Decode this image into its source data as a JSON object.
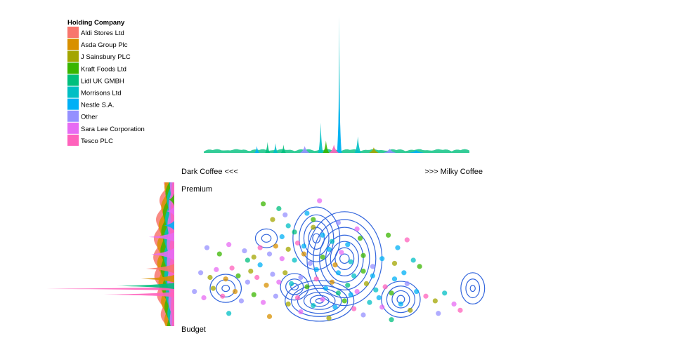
{
  "chart_data": {
    "type": "scatter",
    "legend": {
      "title": "Holding Company",
      "placement": "top-left",
      "entries": [
        {
          "name": "Aldi Stores Ltd",
          "color": "#F8766D"
        },
        {
          "name": "Asda Group Plc",
          "color": "#D89000"
        },
        {
          "name": "J Sainsbury PLC",
          "color": "#A3A500"
        },
        {
          "name": "Kraft Foods Ltd",
          "color": "#39B600"
        },
        {
          "name": "Lidl UK GMBH",
          "color": "#00BF7D"
        },
        {
          "name": "Morrisons Ltd",
          "color": "#00BFC4"
        },
        {
          "name": "Nestle S.A.",
          "color": "#00B0F6"
        },
        {
          "name": "Other",
          "color": "#9590FF"
        },
        {
          "name": "Sara Lee Corporation",
          "color": "#E76BF3"
        },
        {
          "name": "Tesco PLC",
          "color": "#FF62BC"
        }
      ]
    },
    "labels": {
      "x_left": "Dark Coffee <<<",
      "x_right": ">>> Milky Coffee",
      "y_top": "Premium",
      "y_bottom": "Budget"
    },
    "xlim": [
      0,
      1
    ],
    "ylim": [
      0,
      1
    ],
    "grid": false,
    "contour_color": "#3366DD",
    "contours": [
      {
        "center": [
          0.54,
          0.49
        ],
        "rx": [
          0.015,
          0.03,
          0.045,
          0.06,
          0.08,
          0.1,
          0.12
        ],
        "ry": [
          0.03,
          0.07,
          0.11,
          0.15,
          0.2,
          0.25,
          0.3
        ]
      },
      {
        "center": [
          0.45,
          0.62
        ],
        "rx": [
          0.012,
          0.025,
          0.04,
          0.055,
          0.075
        ],
        "ry": [
          0.03,
          0.07,
          0.11,
          0.15,
          0.2
        ]
      },
      {
        "center": [
          0.46,
          0.22
        ],
        "rx": [
          0.012,
          0.03,
          0.05,
          0.07,
          0.09,
          0.11
        ],
        "ry": [
          0.015,
          0.035,
          0.055,
          0.08,
          0.1,
          0.13
        ]
      },
      {
        "center": [
          0.72,
          0.23
        ],
        "rx": [
          0.012,
          0.028,
          0.045,
          0.062
        ],
        "ry": [
          0.025,
          0.055,
          0.085,
          0.115
        ]
      },
      {
        "center": [
          0.95,
          0.3
        ],
        "rx": [
          0.008,
          0.022,
          0.038
        ],
        "ry": [
          0.02,
          0.06,
          0.1
        ]
      },
      {
        "center": [
          0.16,
          0.3
        ],
        "rx": [
          0.012,
          0.03,
          0.05
        ],
        "ry": [
          0.02,
          0.055,
          0.09
        ]
      },
      {
        "center": [
          0.38,
          0.31
        ],
        "rx": [
          0.012,
          0.028,
          0.045
        ],
        "ry": [
          0.02,
          0.05,
          0.085
        ]
      },
      {
        "center": [
          0.29,
          0.62
        ],
        "rx": [
          0.015,
          0.035
        ],
        "ry": [
          0.025,
          0.06
        ]
      }
    ],
    "points": [
      {
        "x": 0.28,
        "y": 0.84,
        "c": 3
      },
      {
        "x": 0.33,
        "y": 0.81,
        "c": 4
      },
      {
        "x": 0.46,
        "y": 0.86,
        "c": 8
      },
      {
        "x": 0.31,
        "y": 0.74,
        "c": 2
      },
      {
        "x": 0.42,
        "y": 0.78,
        "c": 6
      },
      {
        "x": 0.36,
        "y": 0.7,
        "c": 5
      },
      {
        "x": 0.44,
        "y": 0.69,
        "c": 2
      },
      {
        "x": 0.52,
        "y": 0.72,
        "c": 7
      },
      {
        "x": 0.58,
        "y": 0.68,
        "c": 8
      },
      {
        "x": 0.68,
        "y": 0.64,
        "c": 3
      },
      {
        "x": 0.74,
        "y": 0.61,
        "c": 9
      },
      {
        "x": 0.71,
        "y": 0.56,
        "c": 6
      },
      {
        "x": 0.1,
        "y": 0.56,
        "c": 7
      },
      {
        "x": 0.14,
        "y": 0.52,
        "c": 3
      },
      {
        "x": 0.17,
        "y": 0.58,
        "c": 8
      },
      {
        "x": 0.22,
        "y": 0.54,
        "c": 7
      },
      {
        "x": 0.25,
        "y": 0.5,
        "c": 2
      },
      {
        "x": 0.27,
        "y": 0.56,
        "c": 9
      },
      {
        "x": 0.3,
        "y": 0.52,
        "c": 7
      },
      {
        "x": 0.32,
        "y": 0.57,
        "c": 1
      },
      {
        "x": 0.34,
        "y": 0.49,
        "c": 8
      },
      {
        "x": 0.36,
        "y": 0.55,
        "c": 2
      },
      {
        "x": 0.38,
        "y": 0.48,
        "c": 5
      },
      {
        "x": 0.39,
        "y": 0.59,
        "c": 9
      },
      {
        "x": 0.41,
        "y": 0.52,
        "c": 1
      },
      {
        "x": 0.43,
        "y": 0.46,
        "c": 7
      },
      {
        "x": 0.47,
        "y": 0.5,
        "c": 3
      },
      {
        "x": 0.49,
        "y": 0.55,
        "c": 6
      },
      {
        "x": 0.51,
        "y": 0.45,
        "c": 1
      },
      {
        "x": 0.53,
        "y": 0.53,
        "c": 8
      },
      {
        "x": 0.56,
        "y": 0.47,
        "c": 5
      },
      {
        "x": 0.6,
        "y": 0.51,
        "c": 3
      },
      {
        "x": 0.63,
        "y": 0.44,
        "c": 7
      },
      {
        "x": 0.66,
        "y": 0.49,
        "c": 6
      },
      {
        "x": 0.7,
        "y": 0.46,
        "c": 2
      },
      {
        "x": 0.76,
        "y": 0.48,
        "c": 5
      },
      {
        "x": 0.78,
        "y": 0.44,
        "c": 3
      },
      {
        "x": 0.08,
        "y": 0.4,
        "c": 7
      },
      {
        "x": 0.11,
        "y": 0.37,
        "c": 2
      },
      {
        "x": 0.13,
        "y": 0.42,
        "c": 8
      },
      {
        "x": 0.16,
        "y": 0.36,
        "c": 1
      },
      {
        "x": 0.18,
        "y": 0.43,
        "c": 9
      },
      {
        "x": 0.2,
        "y": 0.38,
        "c": 3
      },
      {
        "x": 0.23,
        "y": 0.34,
        "c": 7
      },
      {
        "x": 0.24,
        "y": 0.41,
        "c": 2
      },
      {
        "x": 0.26,
        "y": 0.37,
        "c": 9
      },
      {
        "x": 0.29,
        "y": 0.32,
        "c": 1
      },
      {
        "x": 0.31,
        "y": 0.39,
        "c": 7
      },
      {
        "x": 0.33,
        "y": 0.34,
        "c": 8
      },
      {
        "x": 0.35,
        "y": 0.4,
        "c": 2
      },
      {
        "x": 0.37,
        "y": 0.33,
        "c": 5
      },
      {
        "x": 0.4,
        "y": 0.37,
        "c": 7
      },
      {
        "x": 0.42,
        "y": 0.31,
        "c": 3
      },
      {
        "x": 0.45,
        "y": 0.36,
        "c": 9
      },
      {
        "x": 0.48,
        "y": 0.3,
        "c": 6
      },
      {
        "x": 0.5,
        "y": 0.34,
        "c": 1
      },
      {
        "x": 0.55,
        "y": 0.32,
        "c": 4
      },
      {
        "x": 0.58,
        "y": 0.28,
        "c": 8
      },
      {
        "x": 0.61,
        "y": 0.33,
        "c": 2
      },
      {
        "x": 0.64,
        "y": 0.29,
        "c": 5
      },
      {
        "x": 0.67,
        "y": 0.31,
        "c": 9
      },
      {
        "x": 0.69,
        "y": 0.27,
        "c": 3
      },
      {
        "x": 0.74,
        "y": 0.33,
        "c": 7
      },
      {
        "x": 0.77,
        "y": 0.28,
        "c": 6
      },
      {
        "x": 0.8,
        "y": 0.25,
        "c": 9
      },
      {
        "x": 0.83,
        "y": 0.22,
        "c": 2
      },
      {
        "x": 0.86,
        "y": 0.27,
        "c": 5
      },
      {
        "x": 0.89,
        "y": 0.2,
        "c": 8
      },
      {
        "x": 0.06,
        "y": 0.28,
        "c": 7
      },
      {
        "x": 0.09,
        "y": 0.24,
        "c": 8
      },
      {
        "x": 0.12,
        "y": 0.3,
        "c": 2
      },
      {
        "x": 0.15,
        "y": 0.25,
        "c": 9
      },
      {
        "x": 0.19,
        "y": 0.28,
        "c": 1
      },
      {
        "x": 0.21,
        "y": 0.22,
        "c": 7
      },
      {
        "x": 0.25,
        "y": 0.26,
        "c": 3
      },
      {
        "x": 0.28,
        "y": 0.21,
        "c": 8
      },
      {
        "x": 0.32,
        "y": 0.25,
        "c": 7
      },
      {
        "x": 0.36,
        "y": 0.2,
        "c": 2
      },
      {
        "x": 0.39,
        "y": 0.24,
        "c": 9
      },
      {
        "x": 0.44,
        "y": 0.19,
        "c": 5
      },
      {
        "x": 0.47,
        "y": 0.23,
        "c": 8
      },
      {
        "x": 0.51,
        "y": 0.18,
        "c": 6
      },
      {
        "x": 0.54,
        "y": 0.22,
        "c": 3
      },
      {
        "x": 0.57,
        "y": 0.17,
        "c": 9
      },
      {
        "x": 0.62,
        "y": 0.21,
        "c": 5
      },
      {
        "x": 0.66,
        "y": 0.18,
        "c": 8
      },
      {
        "x": 0.72,
        "y": 0.2,
        "c": 6
      },
      {
        "x": 0.75,
        "y": 0.16,
        "c": 2
      },
      {
        "x": 0.84,
        "y": 0.14,
        "c": 7
      },
      {
        "x": 0.91,
        "y": 0.16,
        "c": 9
      },
      {
        "x": 0.17,
        "y": 0.14,
        "c": 5
      },
      {
        "x": 0.3,
        "y": 0.12,
        "c": 1
      },
      {
        "x": 0.4,
        "y": 0.15,
        "c": 8
      },
      {
        "x": 0.49,
        "y": 0.11,
        "c": 2
      },
      {
        "x": 0.6,
        "y": 0.13,
        "c": 7
      },
      {
        "x": 0.69,
        "y": 0.1,
        "c": 4
      },
      {
        "x": 0.47,
        "y": 0.64,
        "c": 6
      },
      {
        "x": 0.5,
        "y": 0.6,
        "c": 5
      },
      {
        "x": 0.55,
        "y": 0.58,
        "c": 6
      },
      {
        "x": 0.45,
        "y": 0.42,
        "c": 6
      },
      {
        "x": 0.52,
        "y": 0.4,
        "c": 6
      },
      {
        "x": 0.57,
        "y": 0.38,
        "c": 5
      },
      {
        "x": 0.63,
        "y": 0.38,
        "c": 6
      },
      {
        "x": 0.7,
        "y": 0.36,
        "c": 6
      },
      {
        "x": 0.73,
        "y": 0.4,
        "c": 6
      },
      {
        "x": 0.41,
        "y": 0.57,
        "c": 6
      },
      {
        "x": 0.34,
        "y": 0.63,
        "c": 6
      },
      {
        "x": 0.27,
        "y": 0.45,
        "c": 6
      },
      {
        "x": 0.56,
        "y": 0.26,
        "c": 6
      },
      {
        "x": 0.65,
        "y": 0.24,
        "c": 6
      },
      {
        "x": 0.52,
        "y": 0.27,
        "c": 4
      },
      {
        "x": 0.59,
        "y": 0.62,
        "c": 3
      },
      {
        "x": 0.38,
        "y": 0.66,
        "c": 4
      },
      {
        "x": 0.44,
        "y": 0.74,
        "c": 3
      },
      {
        "x": 0.35,
        "y": 0.77,
        "c": 7
      },
      {
        "x": 0.23,
        "y": 0.48,
        "c": 4
      },
      {
        "x": 0.6,
        "y": 0.41,
        "c": 3
      }
    ],
    "top_marginal": {
      "peaks": [
        {
          "x": 0.51,
          "h": 1.0,
          "w": 0.0018,
          "c": 5
        },
        {
          "x": 0.51,
          "h": 0.55,
          "w": 0.003,
          "c": 6
        },
        {
          "x": 0.44,
          "h": 0.22,
          "w": 0.003,
          "c": 5
        },
        {
          "x": 0.58,
          "h": 0.12,
          "w": 0.004,
          "c": 5
        },
        {
          "x": 0.46,
          "h": 0.09,
          "w": 0.004,
          "c": 3
        },
        {
          "x": 0.24,
          "h": 0.08,
          "w": 0.003,
          "c": 4
        },
        {
          "x": 0.27,
          "h": 0.07,
          "w": 0.003,
          "c": 5
        },
        {
          "x": 0.3,
          "h": 0.06,
          "w": 0.003,
          "c": 4
        },
        {
          "x": 0.2,
          "h": 0.05,
          "w": 0.003,
          "c": 6
        },
        {
          "x": 0.38,
          "h": 0.05,
          "w": 0.006,
          "c": 7
        },
        {
          "x": 0.49,
          "h": 0.06,
          "w": 0.006,
          "c": 9
        },
        {
          "x": 0.64,
          "h": 0.04,
          "w": 0.006,
          "c": 2
        },
        {
          "x": 0.7,
          "h": 0.03,
          "w": 0.008,
          "c": 7
        },
        {
          "x": 0.8,
          "h": 0.02,
          "w": 0.01,
          "c": 6
        }
      ]
    },
    "left_marginal": {
      "peaks": [
        {
          "y": 0.26,
          "h": 1.0,
          "w": 0.006,
          "c": 9
        },
        {
          "y": 0.22,
          "h": 0.55,
          "w": 0.008,
          "c": 9
        },
        {
          "y": 0.28,
          "h": 0.45,
          "w": 0.01,
          "c": 4
        },
        {
          "y": 0.33,
          "h": 0.26,
          "w": 0.012,
          "c": 1
        },
        {
          "y": 0.4,
          "h": 0.22,
          "w": 0.015,
          "c": 0
        },
        {
          "y": 0.5,
          "h": 0.18,
          "w": 0.02,
          "c": 8
        },
        {
          "y": 0.62,
          "h": 0.2,
          "w": 0.015,
          "c": 8
        },
        {
          "y": 0.7,
          "h": 0.08,
          "w": 0.015,
          "c": 6
        },
        {
          "y": 0.8,
          "h": 0.06,
          "w": 0.015,
          "c": 8
        },
        {
          "y": 0.88,
          "h": 0.04,
          "w": 0.02,
          "c": 3
        }
      ]
    }
  }
}
